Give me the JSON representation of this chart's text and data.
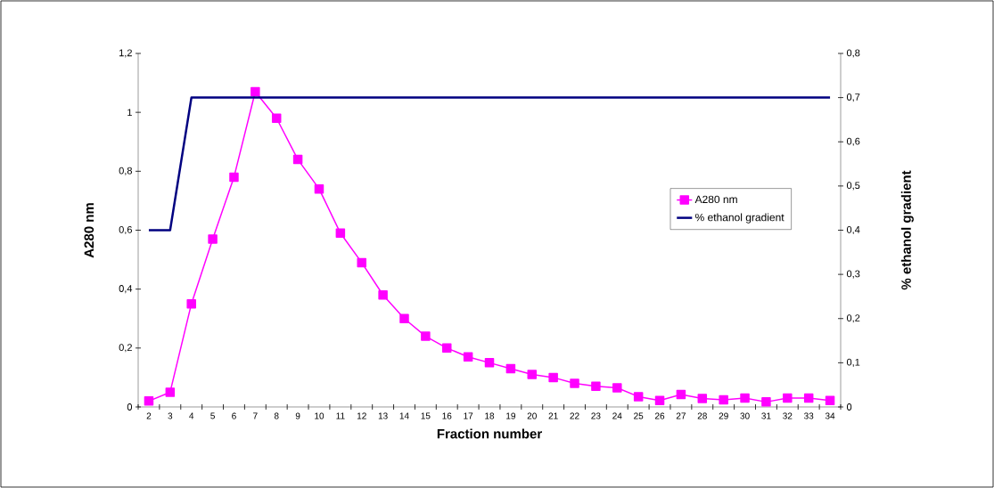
{
  "chart_data": {
    "type": "line",
    "xlabel": "Fraction number",
    "ylabel": "A280 nm",
    "y2label": "% ethanol gradient",
    "categories": [
      "2",
      "3",
      "4",
      "5",
      "6",
      "7",
      "8",
      "9",
      "10",
      "11",
      "12",
      "13",
      "14",
      "15",
      "16",
      "17",
      "18",
      "19",
      "20",
      "21",
      "22",
      "23",
      "24",
      "25",
      "26",
      "27",
      "28",
      "29",
      "30",
      "31",
      "32",
      "33",
      "34"
    ],
    "series": [
      {
        "name": "A280 nm",
        "color": "#ff00ff",
        "marker": "square",
        "values": [
          0.02,
          0.05,
          0.35,
          0.57,
          0.78,
          1.07,
          0.98,
          0.84,
          0.74,
          0.59,
          0.49,
          0.38,
          0.3,
          0.24,
          0.2,
          0.17,
          0.15,
          0.13,
          0.11,
          0.1,
          0.08,
          0.07,
          0.065,
          0.035,
          0.022,
          0.042,
          0.029,
          0.024,
          0.03,
          0.017,
          0.03,
          0.03,
          0.022
        ]
      },
      {
        "name": "% ethanol gradient",
        "color": "#000080",
        "marker": "none",
        "axis": "y2",
        "values": [
          0.4,
          0.4,
          0.7,
          0.7,
          0.7,
          0.7,
          0.7,
          0.7,
          0.7,
          0.7,
          0.7,
          0.7,
          0.7,
          0.7,
          0.7,
          0.7,
          0.7,
          0.7,
          0.7,
          0.7,
          0.7,
          0.7,
          0.7,
          0.7,
          0.7,
          0.7,
          0.7,
          0.7,
          0.7,
          0.7,
          0.7,
          0.7,
          0.7
        ]
      }
    ],
    "ylim": [
      0,
      1.2
    ],
    "yticks": [
      0,
      {
        "value": 0.2,
        "label": "0,2"
      },
      {
        "value": 0.4,
        "label": "0,4"
      },
      {
        "value": 0.6,
        "label": "0,6"
      },
      {
        "value": 0.8,
        "label": "0,8"
      },
      1,
      {
        "value": 1.2,
        "label": "1,2"
      }
    ],
    "y2lim": [
      0,
      0.8
    ],
    "y2ticks": [
      0,
      {
        "value": 0.1,
        "label": "0,1"
      },
      {
        "value": 0.2,
        "label": "0,2"
      },
      {
        "value": 0.3,
        "label": "0,3"
      },
      {
        "value": 0.4,
        "label": "0,4"
      },
      {
        "value": 0.5,
        "label": "0,5"
      },
      {
        "value": 0.6,
        "label": "0,6"
      },
      {
        "value": 0.7,
        "label": "0,7"
      },
      {
        "value": 0.8,
        "label": "0,8"
      }
    ],
    "grid": false,
    "legend": "right"
  }
}
